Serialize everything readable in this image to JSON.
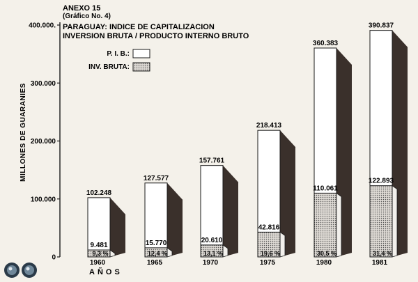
{
  "header": {
    "annex": "ANEXO 15",
    "subtitle": "(Gráfico No. 4)",
    "title_line1": "PARAGUAY: INDICE DE CAPITALIZACION",
    "title_line2": "INVERSION BRUTA / PRODUCTO INTERNO BRUTO"
  },
  "colors": {
    "pib_face": "#ffffff",
    "pib_shadow": "#3a302b",
    "inv_face": "#d9d5cf",
    "background": "#f4f1ea",
    "ink": "#1a1a1a"
  },
  "chart_data": {
    "type": "bar",
    "title": "PARAGUAY: INDICE DE CAPITALIZACION",
    "subtitle": "INVERSION BRUTA / PRODUCTO INTERNO BRUTO",
    "xlabel": "AÑOS",
    "ylabel": "MILLONES DE GUARANIES",
    "ylim": [
      0,
      400000
    ],
    "yticks": [
      0,
      100000,
      200000,
      300000,
      400000
    ],
    "ytick_labels": [
      "0",
      "100.000",
      "200.000",
      "300.000",
      "400.000."
    ],
    "categories": [
      "1960",
      "1965",
      "1970",
      "1975",
      "1980",
      "1981"
    ],
    "series": [
      {
        "name": "P. I. B.:",
        "values": [
          102248,
          127577,
          157761,
          218413,
          360383,
          390837
        ],
        "labels": [
          "102.248",
          "127.577",
          "157.761",
          "218.413",
          "360.383",
          "390.837"
        ]
      },
      {
        "name": "INV. BRUTA:",
        "values": [
          9481,
          15770,
          20610,
          42816,
          110061,
          122893
        ],
        "labels": [
          "9.481",
          "15.770",
          "20.610",
          "42.816",
          "110.061",
          "122.893"
        ],
        "ratio_labels": [
          "9,3 %",
          "12,4 %",
          "13,1 %",
          "19,6 %",
          "30,5 %",
          "31,4 %"
        ]
      }
    ],
    "legend_position": "top-left",
    "grid": false
  }
}
